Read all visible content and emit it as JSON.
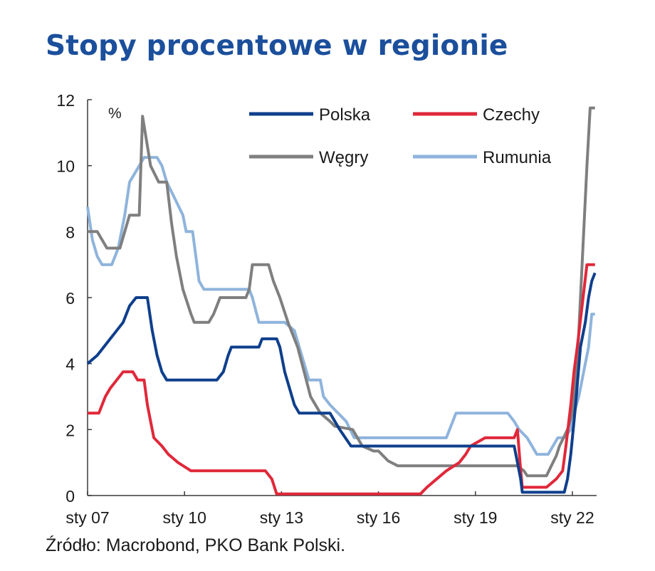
{
  "header": {
    "title": "Stopy procentowe w regionie"
  },
  "footer": {
    "source": "Źródło: Macrobond, PKO Bank Polski."
  },
  "chart_data": {
    "type": "line",
    "unit_label": "%",
    "ylim": [
      0,
      12
    ],
    "y_ticks": [
      0,
      2,
      4,
      6,
      8,
      10,
      12
    ],
    "xlim": [
      2007.0,
      2022.75
    ],
    "x_ticks": [
      {
        "value": 2007.0,
        "label": "sty 07"
      },
      {
        "value": 2010.0,
        "label": "sty 10"
      },
      {
        "value": 2013.0,
        "label": "sty 13"
      },
      {
        "value": 2016.0,
        "label": "sty 16"
      },
      {
        "value": 2019.0,
        "label": "sty 19"
      },
      {
        "value": 2022.0,
        "label": "sty 22"
      }
    ],
    "grid": false,
    "legend_position": "top-right",
    "colors": {
      "Polska": "#0f3f8c",
      "Czechy": "#e0283a",
      "Węgry": "#7f7f7f",
      "Rumunia": "#8fb4dc"
    },
    "series": [
      {
        "name": "Polska",
        "points": [
          [
            2007.0,
            4.0
          ],
          [
            2007.3,
            4.25
          ],
          [
            2007.5,
            4.5
          ],
          [
            2007.7,
            4.75
          ],
          [
            2007.9,
            5.0
          ],
          [
            2008.1,
            5.25
          ],
          [
            2008.3,
            5.75
          ],
          [
            2008.5,
            6.0
          ],
          [
            2008.85,
            6.0
          ],
          [
            2009.0,
            5.0
          ],
          [
            2009.15,
            4.25
          ],
          [
            2009.3,
            3.75
          ],
          [
            2009.45,
            3.5
          ],
          [
            2010.0,
            3.5
          ],
          [
            2010.5,
            3.5
          ],
          [
            2011.0,
            3.5
          ],
          [
            2011.2,
            3.75
          ],
          [
            2011.35,
            4.25
          ],
          [
            2011.45,
            4.5
          ],
          [
            2012.0,
            4.5
          ],
          [
            2012.3,
            4.5
          ],
          [
            2012.4,
            4.75
          ],
          [
            2012.85,
            4.75
          ],
          [
            2012.95,
            4.5
          ],
          [
            2013.1,
            3.75
          ],
          [
            2013.25,
            3.25
          ],
          [
            2013.4,
            2.75
          ],
          [
            2013.55,
            2.5
          ],
          [
            2014.5,
            2.5
          ],
          [
            2014.8,
            2.0
          ],
          [
            2015.15,
            1.5
          ],
          [
            2016.0,
            1.5
          ],
          [
            2018.0,
            1.5
          ],
          [
            2019.0,
            1.5
          ],
          [
            2020.2,
            1.5
          ],
          [
            2020.3,
            1.0
          ],
          [
            2020.4,
            0.5
          ],
          [
            2020.45,
            0.1
          ],
          [
            2021.0,
            0.1
          ],
          [
            2021.75,
            0.1
          ],
          [
            2021.85,
            0.5
          ],
          [
            2021.95,
            1.25
          ],
          [
            2022.1,
            2.75
          ],
          [
            2022.25,
            4.5
          ],
          [
            2022.4,
            5.25
          ],
          [
            2022.5,
            6.0
          ],
          [
            2022.6,
            6.5
          ],
          [
            2022.7,
            6.75
          ]
        ]
      },
      {
        "name": "Czechy",
        "points": [
          [
            2007.0,
            2.5
          ],
          [
            2007.35,
            2.5
          ],
          [
            2007.45,
            2.75
          ],
          [
            2007.55,
            3.0
          ],
          [
            2007.7,
            3.25
          ],
          [
            2007.9,
            3.5
          ],
          [
            2008.1,
            3.75
          ],
          [
            2008.4,
            3.75
          ],
          [
            2008.55,
            3.5
          ],
          [
            2008.75,
            3.5
          ],
          [
            2008.85,
            2.75
          ],
          [
            2008.95,
            2.25
          ],
          [
            2009.05,
            1.75
          ],
          [
            2009.3,
            1.5
          ],
          [
            2009.5,
            1.25
          ],
          [
            2009.8,
            1.0
          ],
          [
            2010.2,
            0.75
          ],
          [
            2012.0,
            0.75
          ],
          [
            2012.5,
            0.75
          ],
          [
            2012.7,
            0.5
          ],
          [
            2012.85,
            0.05
          ],
          [
            2017.3,
            0.05
          ],
          [
            2017.5,
            0.25
          ],
          [
            2017.8,
            0.5
          ],
          [
            2018.1,
            0.75
          ],
          [
            2018.5,
            1.0
          ],
          [
            2018.7,
            1.25
          ],
          [
            2018.85,
            1.5
          ],
          [
            2019.3,
            1.75
          ],
          [
            2020.2,
            1.75
          ],
          [
            2020.3,
            2.0
          ],
          [
            2020.38,
            1.0
          ],
          [
            2020.45,
            0.25
          ],
          [
            2021.2,
            0.25
          ],
          [
            2021.5,
            0.5
          ],
          [
            2021.7,
            0.75
          ],
          [
            2021.8,
            1.5
          ],
          [
            2021.95,
            2.75
          ],
          [
            2022.05,
            3.75
          ],
          [
            2022.15,
            4.5
          ],
          [
            2022.3,
            5.75
          ],
          [
            2022.45,
            7.0
          ],
          [
            2022.7,
            7.0
          ]
        ]
      },
      {
        "name": "Węgry",
        "points": [
          [
            2007.0,
            8.0
          ],
          [
            2007.3,
            8.0
          ],
          [
            2007.45,
            7.75
          ],
          [
            2007.6,
            7.5
          ],
          [
            2008.0,
            7.5
          ],
          [
            2008.15,
            8.0
          ],
          [
            2008.3,
            8.5
          ],
          [
            2008.6,
            8.5
          ],
          [
            2008.7,
            11.5
          ],
          [
            2008.95,
            10.0
          ],
          [
            2009.2,
            9.5
          ],
          [
            2009.45,
            9.5
          ],
          [
            2009.6,
            8.25
          ],
          [
            2009.75,
            7.25
          ],
          [
            2009.95,
            6.25
          ],
          [
            2010.2,
            5.5
          ],
          [
            2010.3,
            5.25
          ],
          [
            2010.75,
            5.25
          ],
          [
            2010.9,
            5.5
          ],
          [
            2011.0,
            5.75
          ],
          [
            2011.1,
            6.0
          ],
          [
            2011.9,
            6.0
          ],
          [
            2012.0,
            6.25
          ],
          [
            2012.1,
            7.0
          ],
          [
            2012.6,
            7.0
          ],
          [
            2012.75,
            6.5
          ],
          [
            2012.95,
            6.0
          ],
          [
            2013.2,
            5.25
          ],
          [
            2013.5,
            4.5
          ],
          [
            2013.7,
            3.75
          ],
          [
            2013.9,
            3.0
          ],
          [
            2014.2,
            2.5
          ],
          [
            2014.5,
            2.25
          ],
          [
            2014.65,
            2.1
          ],
          [
            2015.2,
            2.0
          ],
          [
            2015.5,
            1.5
          ],
          [
            2015.85,
            1.35
          ],
          [
            2016.0,
            1.35
          ],
          [
            2016.3,
            1.05
          ],
          [
            2016.6,
            0.9
          ],
          [
            2017.0,
            0.9
          ],
          [
            2019.0,
            0.9
          ],
          [
            2020.3,
            0.9
          ],
          [
            2020.5,
            0.75
          ],
          [
            2020.6,
            0.6
          ],
          [
            2021.2,
            0.6
          ],
          [
            2021.35,
            0.9
          ],
          [
            2021.5,
            1.2
          ],
          [
            2021.6,
            1.5
          ],
          [
            2021.75,
            1.8
          ],
          [
            2021.85,
            2.0
          ],
          [
            2022.0,
            2.5
          ],
          [
            2022.15,
            4.0
          ],
          [
            2022.3,
            7.0
          ],
          [
            2022.45,
            10.0
          ],
          [
            2022.55,
            11.75
          ],
          [
            2022.7,
            11.75
          ]
        ]
      },
      {
        "name": "Rumunia",
        "points": [
          [
            2007.0,
            8.75
          ],
          [
            2007.15,
            7.75
          ],
          [
            2007.3,
            7.25
          ],
          [
            2007.45,
            7.0
          ],
          [
            2007.75,
            7.0
          ],
          [
            2007.95,
            7.5
          ],
          [
            2008.15,
            8.5
          ],
          [
            2008.3,
            9.5
          ],
          [
            2008.45,
            9.75
          ],
          [
            2008.6,
            10.0
          ],
          [
            2008.75,
            10.25
          ],
          [
            2009.15,
            10.25
          ],
          [
            2009.3,
            10.0
          ],
          [
            2009.45,
            9.5
          ],
          [
            2009.7,
            9.0
          ],
          [
            2009.95,
            8.5
          ],
          [
            2010.05,
            8.0
          ],
          [
            2010.25,
            8.0
          ],
          [
            2010.35,
            7.25
          ],
          [
            2010.45,
            6.5
          ],
          [
            2010.6,
            6.25
          ],
          [
            2012.0,
            6.25
          ],
          [
            2012.1,
            6.0
          ],
          [
            2012.3,
            5.25
          ],
          [
            2013.1,
            5.25
          ],
          [
            2013.4,
            5.0
          ],
          [
            2013.55,
            4.5
          ],
          [
            2013.7,
            4.0
          ],
          [
            2013.85,
            3.5
          ],
          [
            2014.2,
            3.5
          ],
          [
            2014.3,
            3.0
          ],
          [
            2014.5,
            2.75
          ],
          [
            2014.75,
            2.5
          ],
          [
            2015.0,
            2.25
          ],
          [
            2015.25,
            1.75
          ],
          [
            2016.0,
            1.75
          ],
          [
            2017.5,
            1.75
          ],
          [
            2018.1,
            1.75
          ],
          [
            2018.3,
            2.25
          ],
          [
            2018.4,
            2.5
          ],
          [
            2019.0,
            2.5
          ],
          [
            2020.0,
            2.5
          ],
          [
            2020.2,
            2.25
          ],
          [
            2020.35,
            2.0
          ],
          [
            2020.6,
            1.75
          ],
          [
            2020.75,
            1.5
          ],
          [
            2020.9,
            1.25
          ],
          [
            2021.25,
            1.25
          ],
          [
            2021.4,
            1.5
          ],
          [
            2021.55,
            1.75
          ],
          [
            2021.75,
            1.75
          ],
          [
            2021.95,
            2.0
          ],
          [
            2022.05,
            2.5
          ],
          [
            2022.2,
            3.0
          ],
          [
            2022.35,
            3.75
          ],
          [
            2022.5,
            4.5
          ],
          [
            2022.6,
            5.5
          ],
          [
            2022.7,
            5.5
          ]
        ]
      }
    ]
  }
}
